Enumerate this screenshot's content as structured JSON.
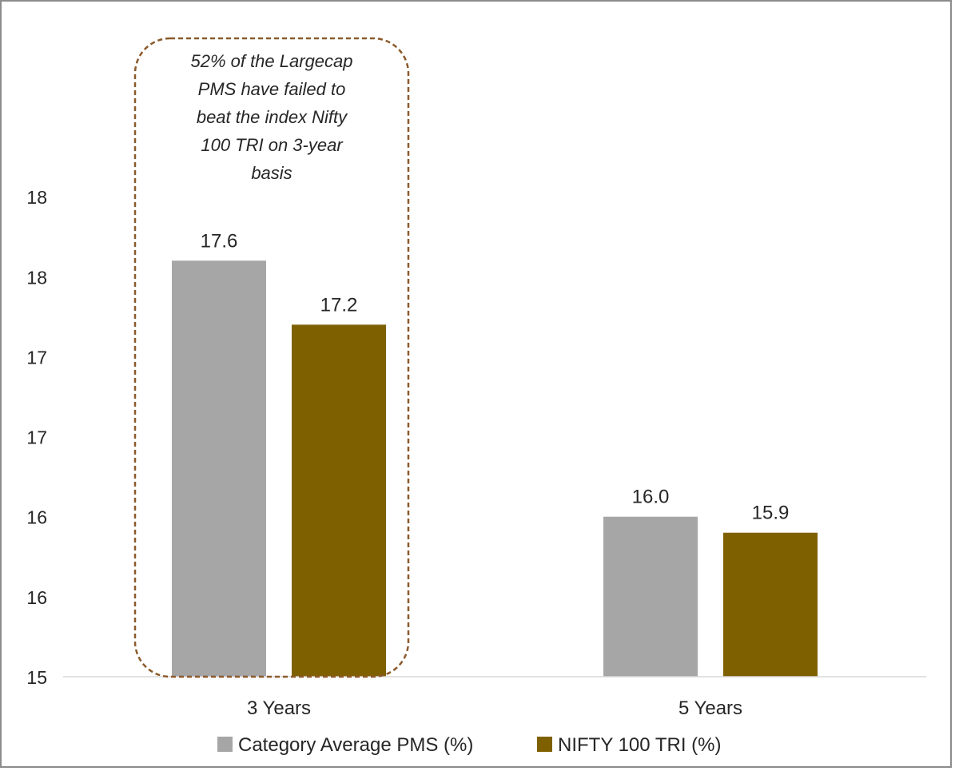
{
  "chart_data": {
    "type": "bar",
    "categories": [
      "3 Years",
      "5 Years"
    ],
    "series": [
      {
        "name": "Category Average PMS (%)",
        "values": [
          17.6,
          16.0
        ],
        "data_labels": [
          "17.6",
          "16.0"
        ],
        "color": "#a6a6a6"
      },
      {
        "name": "NIFTY 100 TRI (%)",
        "values": [
          17.2,
          15.9
        ],
        "data_labels": [
          "17.2",
          "15.9"
        ],
        "color": "#7f6000"
      }
    ],
    "ylim": [
      15,
      18.5
    ],
    "y_tick_values": [
      15,
      15.5,
      16,
      16.5,
      17,
      17.5,
      18
    ],
    "y_tick_labels": [
      "15",
      "16",
      "16",
      "17",
      "17",
      "18",
      "18"
    ],
    "grid": false,
    "legend_position": "bottom",
    "annotation": {
      "lines": [
        "52% of the Largecap",
        "PMS have failed to",
        "beat the index Nifty",
        "100 TRI on    3-year",
        "basis"
      ],
      "border_color": "#8b5a2b",
      "target_category": "3 Years"
    }
  }
}
